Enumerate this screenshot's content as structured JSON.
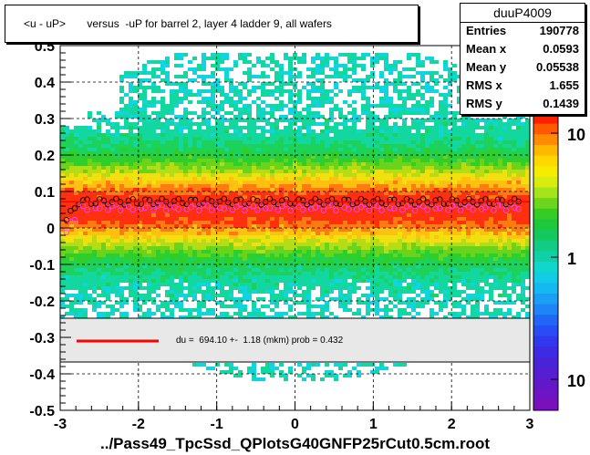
{
  "chart_data": {
    "type": "heatmap",
    "title": "<u - uP>       versus  -uP for barrel 2, layer 4 ladder 9, all wafers",
    "xlabel": "../Pass49_TpcSsd_QPlotsG40GNFP25rCut0.5cm.root",
    "ylabel": "",
    "xlim": [
      -3,
      3
    ],
    "ylim": [
      -0.5,
      0.5
    ],
    "x_ticks": [
      "-3",
      "-2",
      "-1",
      "0",
      "1",
      "2",
      "3"
    ],
    "y_ticks": [
      "-0.5",
      "-0.4",
      "-0.3",
      "-0.2",
      "-0.1",
      "0",
      "0.1",
      "0.2",
      "0.3",
      "0.4",
      "0.5"
    ],
    "z_scale": "log",
    "z_ticks": [
      "10",
      "1",
      "10"
    ],
    "grid": true,
    "profile_black_mean_y": 0.072,
    "profile_magenta_mean_y": 0.058,
    "fit_line_legend": "du =  694.10 +-  1.18 (mkm) prob = 0.432",
    "fit_line_color": "#ff0000",
    "stats": {
      "name": "duuP4009",
      "rows": [
        {
          "key": "Entries",
          "value": "190778"
        },
        {
          "key": "Mean x",
          "value": "0.0593"
        },
        {
          "key": "Mean y",
          "value": "0.05538"
        },
        {
          "key": "RMS x",
          "value": "1.655"
        },
        {
          "key": "RMS y",
          "value": "0.1439"
        }
      ]
    }
  }
}
